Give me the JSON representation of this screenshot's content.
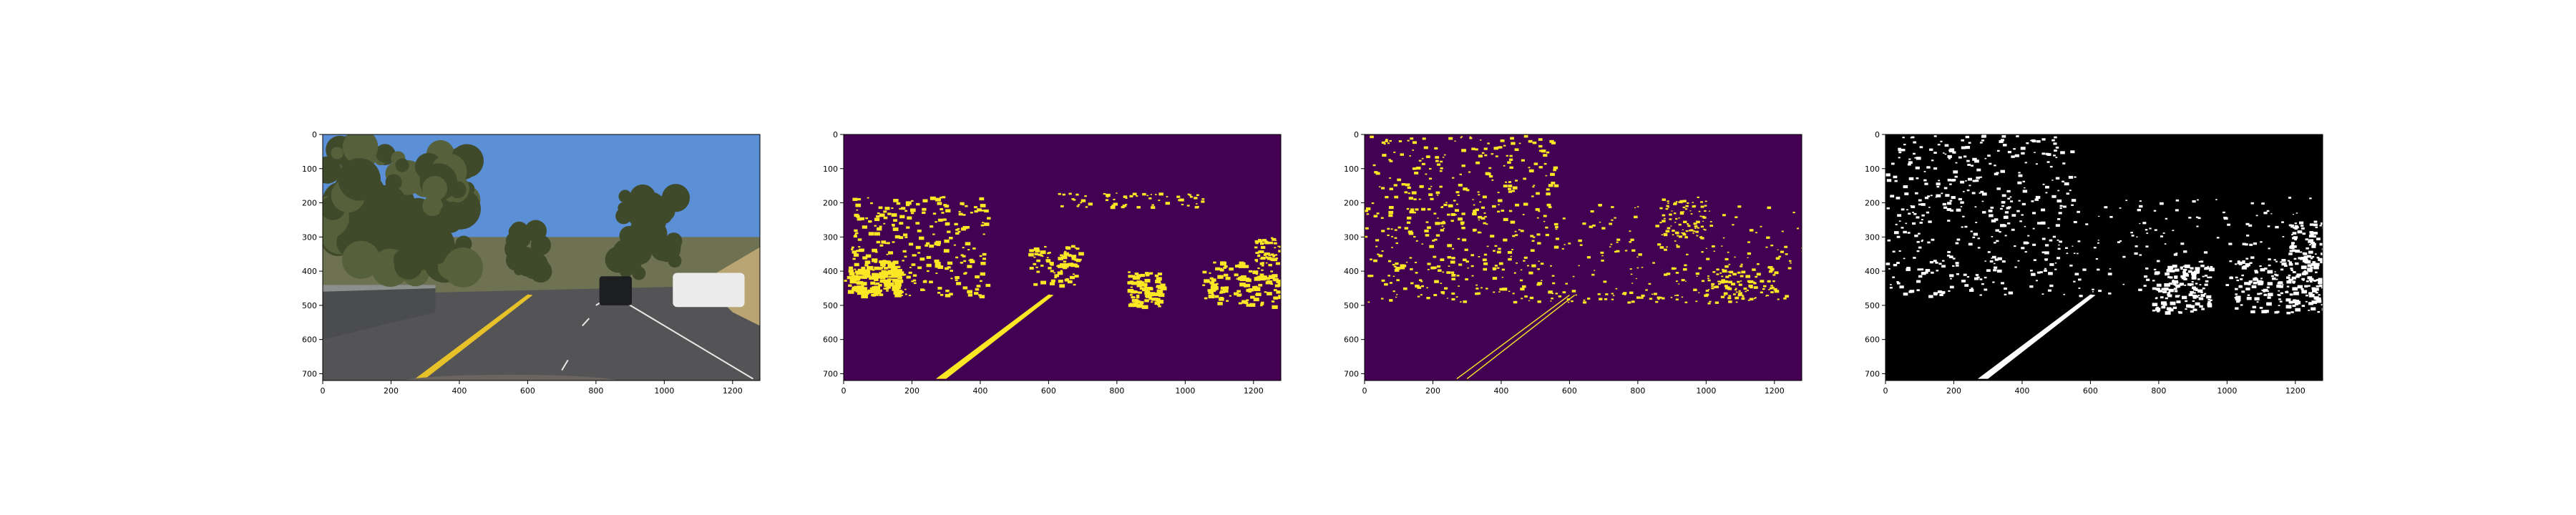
{
  "panel_axes": {
    "x_ticks": [
      0,
      200,
      400,
      600,
      800,
      1000,
      1200
    ],
    "y_ticks": [
      0,
      100,
      200,
      300,
      400,
      500,
      600,
      700
    ],
    "xlim": [
      0,
      1280
    ],
    "ylim": [
      720,
      0
    ],
    "y_inverted": true
  },
  "panels": [
    {
      "name": "road-photo-panel",
      "kind": "photo"
    },
    {
      "name": "yellow-threshold-panel",
      "kind": "binary",
      "background_color": "#440154",
      "foreground_color": "#fde725"
    },
    {
      "name": "gradient-threshold-panel",
      "kind": "binary",
      "background_color": "#440154",
      "foreground_color": "#fde725"
    },
    {
      "name": "combined-binary-panel",
      "kind": "binary",
      "background_color": "#000000",
      "foreground_color": "#ffffff"
    }
  ],
  "colors": {
    "viridis_low": "#440154",
    "viridis_high": "#fde725",
    "sky": "#5b8fd6",
    "road": "#545456",
    "lane_yellow": "#e6c12a",
    "foliage": "#3f4a2a"
  },
  "chart_data": [
    {
      "type": "image",
      "panel": "road-photo",
      "x_ticks": [
        0,
        200,
        400,
        600,
        800,
        1000,
        1200
      ],
      "y_ticks": [
        0,
        100,
        200,
        300,
        400,
        500,
        600,
        700
      ],
      "xlim": [
        0,
        1280
      ],
      "ylim": [
        720,
        0
      ]
    },
    {
      "type": "heatmap",
      "panel": "color-threshold-binary",
      "colormap": "viridis",
      "x_ticks": [
        0,
        200,
        400,
        600,
        800,
        1000,
        1200
      ],
      "y_ticks": [
        0,
        100,
        200,
        300,
        400,
        500,
        600,
        700
      ],
      "xlim": [
        0,
        1280
      ],
      "ylim": [
        720,
        0
      ]
    },
    {
      "type": "heatmap",
      "panel": "gradient-threshold-binary",
      "colormap": "viridis",
      "x_ticks": [
        0,
        200,
        400,
        600,
        800,
        1000,
        1200
      ],
      "y_ticks": [
        0,
        100,
        200,
        300,
        400,
        500,
        600,
        700
      ],
      "xlim": [
        0,
        1280
      ],
      "ylim": [
        720,
        0
      ]
    },
    {
      "type": "heatmap",
      "panel": "combined-binary",
      "colormap": "gray",
      "x_ticks": [
        0,
        200,
        400,
        600,
        800,
        1000,
        1200
      ],
      "y_ticks": [
        0,
        100,
        200,
        300,
        400,
        500,
        600,
        700
      ],
      "xlim": [
        0,
        1280
      ],
      "ylim": [
        720,
        0
      ]
    }
  ]
}
